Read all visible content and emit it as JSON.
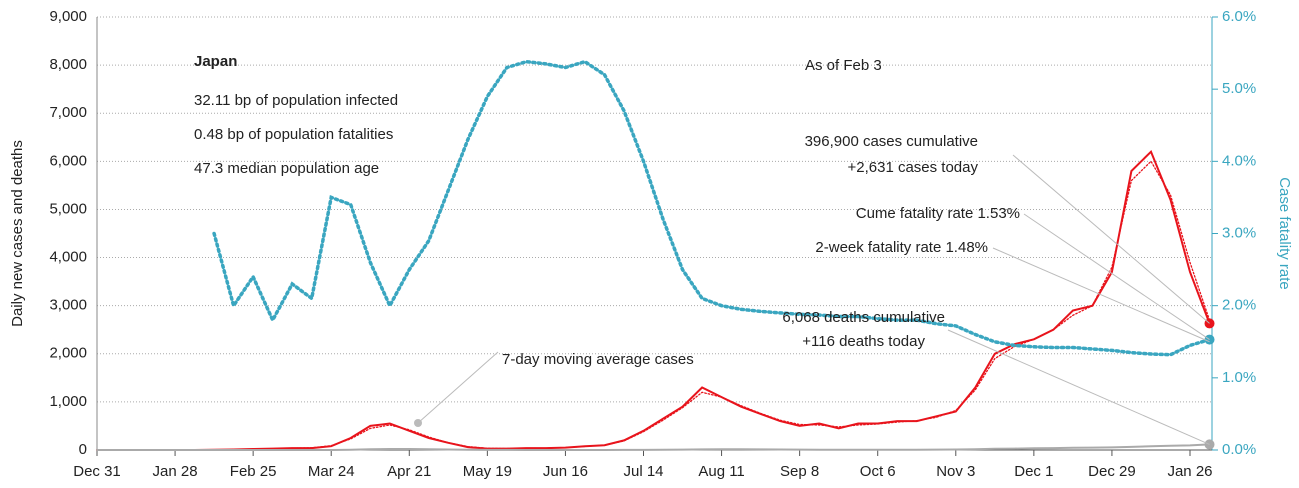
{
  "chart_data": {
    "type": "line",
    "title": "Japan",
    "subtitle_lines": [
      "32.11 bp of population infected",
      "0.48 bp of population fatalities",
      "47.3 median population age"
    ],
    "annotations": [
      "As of Feb 3",
      "396,900 cases cumulative",
      "+2,631 cases today",
      "Cume fatality rate 1.53%",
      "2-week fatality rate 1.48%",
      "6,068 deaths cumulative",
      "+116 deaths today",
      "7-day moving average cases"
    ],
    "ylabel": "Daily new cases and deaths",
    "y2label": "Case fatality rate",
    "categories": [
      "Dec 31",
      null,
      null,
      null,
      "Jan 28",
      null,
      null,
      null,
      "Feb 25",
      null,
      null,
      null,
      "Mar 24",
      null,
      null,
      null,
      "Apr 21",
      null,
      null,
      null,
      "May 19",
      null,
      null,
      null,
      "Jun 16",
      null,
      null,
      null,
      "Jul 14",
      null,
      null,
      null,
      "Aug 11",
      null,
      null,
      null,
      "Sep 8",
      null,
      null,
      null,
      "Oct 6",
      null,
      null,
      null,
      "Nov 3",
      null,
      null,
      null,
      "Dec 1",
      null,
      null,
      null,
      "Dec 29",
      null,
      null,
      null,
      "Jan 26",
      null
    ],
    "series": [
      {
        "color": "#e8141c",
        "style": "solid",
        "values": [
          0,
          0,
          0,
          0,
          0,
          0,
          5,
          10,
          20,
          30,
          40,
          40,
          80,
          250,
          500,
          550,
          400,
          250,
          150,
          60,
          30,
          30,
          40,
          40,
          50,
          80,
          100,
          200,
          400,
          650,
          900,
          1300,
          1100,
          900,
          750,
          600,
          500,
          550,
          450,
          550,
          550,
          600,
          600,
          700,
          800,
          1300,
          2000,
          2200,
          2300,
          2500,
          2900,
          3000,
          3700,
          5800,
          6200,
          5200,
          3700,
          2631
        ]
      },
      {
        "color": "#e8141c",
        "style": "dotted",
        "values": [
          0,
          0,
          0,
          0,
          0,
          0,
          4,
          9,
          18,
          28,
          38,
          45,
          90,
          230,
          450,
          520,
          420,
          270,
          150,
          70,
          35,
          30,
          35,
          40,
          50,
          75,
          100,
          190,
          380,
          620,
          880,
          1200,
          1100,
          920,
          760,
          620,
          530,
          520,
          480,
          520,
          540,
          580,
          610,
          680,
          820,
          1250,
          1900,
          2150,
          2300,
          2500,
          2800,
          3000,
          3800,
          5600,
          6000,
          5300,
          3900,
          2700
        ]
      },
      {
        "color": "#aaaaaa",
        "style": "solid",
        "values": [
          0,
          0,
          0,
          0,
          0,
          0,
          0,
          0,
          0,
          0,
          0,
          0,
          0,
          5,
          15,
          20,
          20,
          15,
          10,
          5,
          3,
          2,
          1,
          1,
          1,
          1,
          1,
          2,
          3,
          5,
          8,
          12,
          15,
          14,
          12,
          10,
          8,
          7,
          6,
          6,
          6,
          6,
          7,
          8,
          10,
          15,
          25,
          30,
          35,
          40,
          45,
          50,
          55,
          65,
          80,
          90,
          95,
          116
        ]
      },
      {
        "color": "#3aa6c0",
        "style": "dotted",
        "axis": "y2",
        "values": [
          null,
          null,
          null,
          null,
          null,
          null,
          3.0,
          2.0,
          2.4,
          1.8,
          2.3,
          2.1,
          3.5,
          3.4,
          2.6,
          2.0,
          2.5,
          2.9,
          3.6,
          4.3,
          4.9,
          5.3,
          5.38,
          5.35,
          5.3,
          5.38,
          5.2,
          4.7,
          4.0,
          3.2,
          2.5,
          2.1,
          2.0,
          1.95,
          1.92,
          1.9,
          1.88,
          1.87,
          1.85,
          1.85,
          1.82,
          1.8,
          1.8,
          1.75,
          1.72,
          1.6,
          1.5,
          1.45,
          1.43,
          1.42,
          1.42,
          1.4,
          1.38,
          1.35,
          1.33,
          1.32,
          1.45,
          1.53
        ]
      }
    ],
    "ylim": [
      0,
      9000
    ],
    "yticks": [
      0,
      {
        "value": 1000,
        "label": "1,000"
      },
      {
        "value": 2000,
        "label": "2,000"
      },
      {
        "value": 3000,
        "label": "3,000"
      },
      {
        "value": 4000,
        "label": "4,000"
      },
      {
        "value": 5000,
        "label": "5,000"
      },
      {
        "value": 6000,
        "label": "6,000"
      },
      {
        "value": 7000,
        "label": "7,000"
      },
      {
        "value": 8000,
        "label": "8,000"
      },
      {
        "value": 9000,
        "label": "9,000"
      }
    ],
    "y2lim": [
      0,
      6
    ],
    "y2ticks": [
      {
        "value": 0,
        "label": "0.0%"
      },
      {
        "value": 1,
        "label": "1.0%"
      },
      {
        "value": 2,
        "label": "2.0%"
      },
      {
        "value": 3,
        "label": "3.0%"
      },
      {
        "value": 4,
        "label": "4.0%"
      },
      {
        "value": 5,
        "label": "5.0%"
      },
      {
        "value": 6,
        "label": "6.0%"
      }
    ],
    "grid": true
  }
}
